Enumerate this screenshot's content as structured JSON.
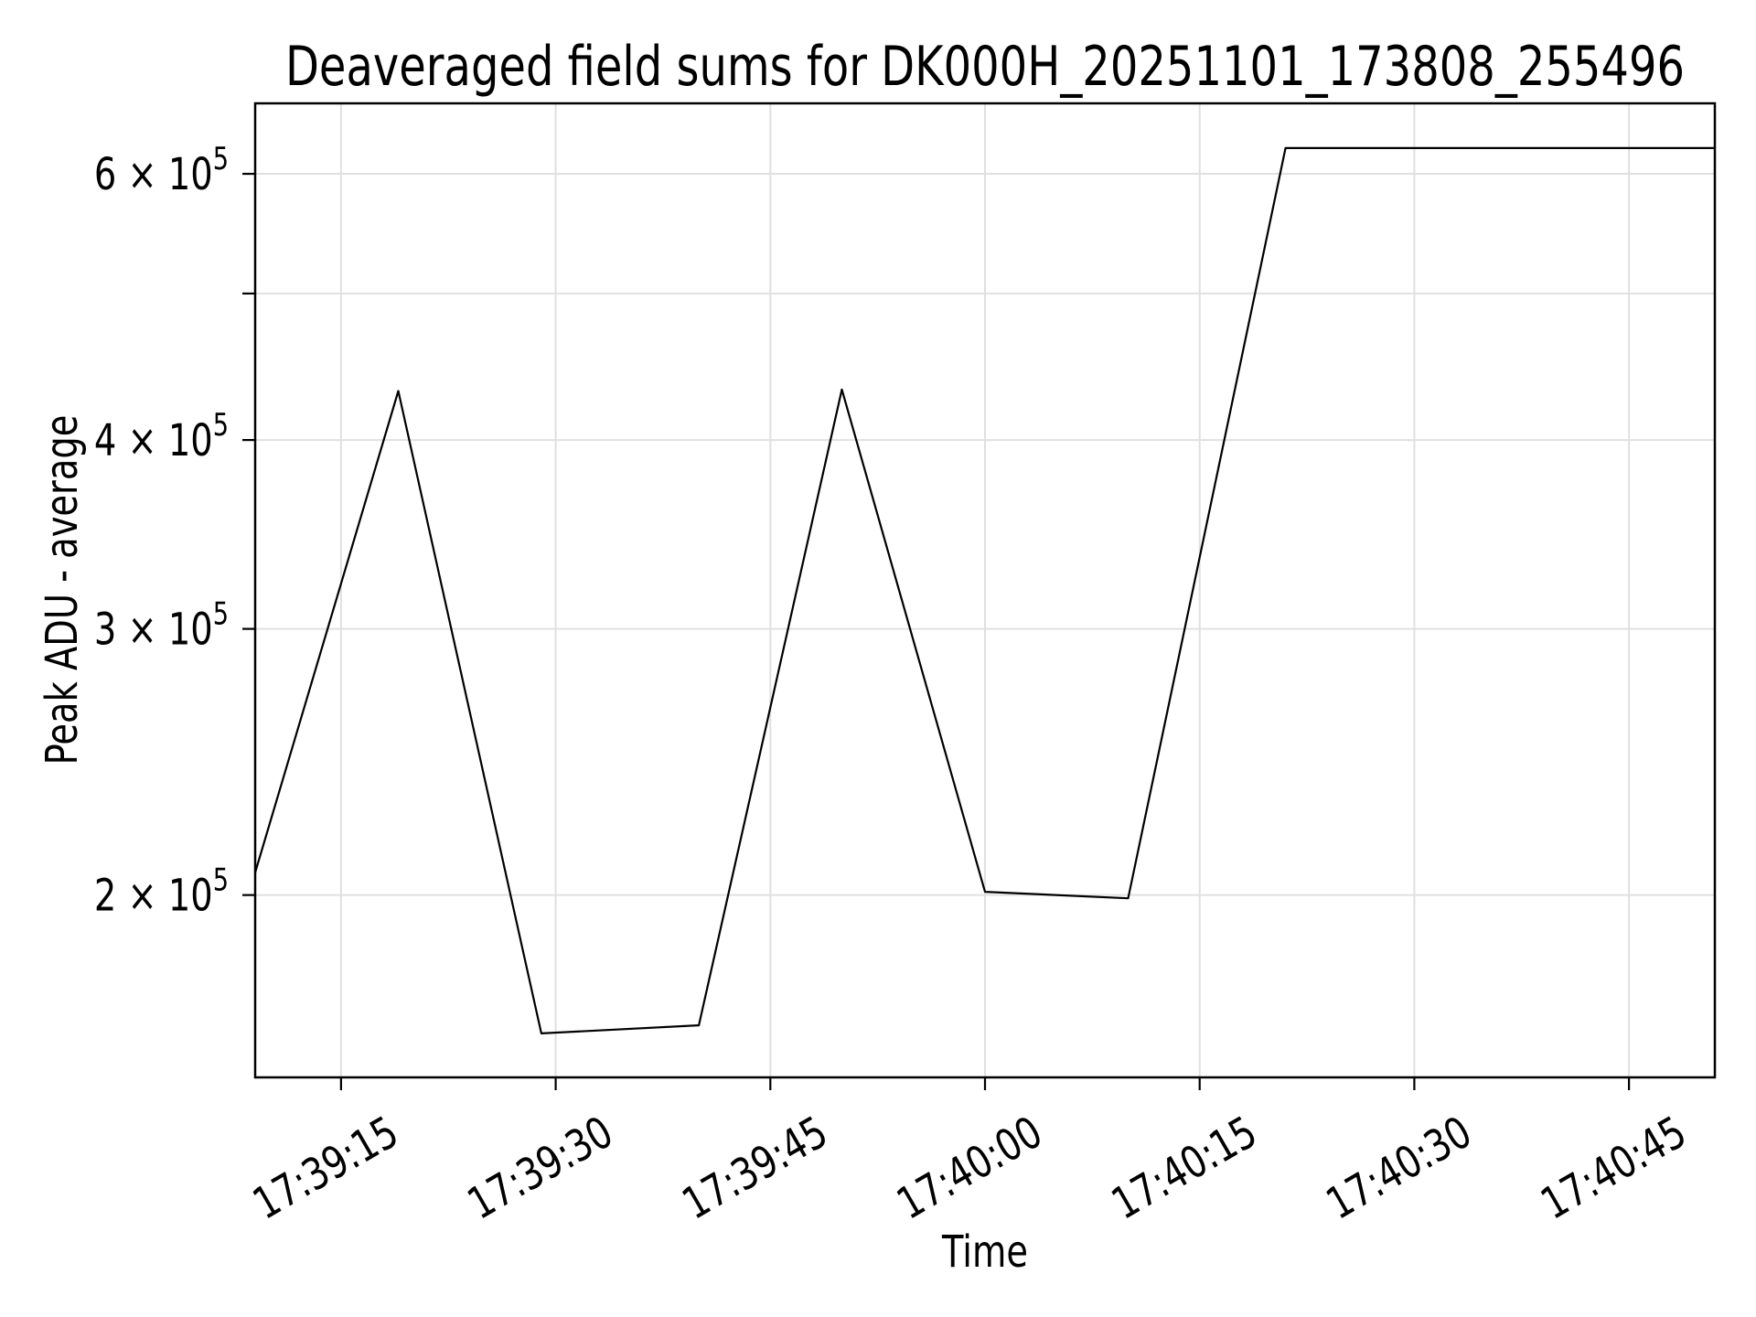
{
  "chart_data": {
    "type": "line",
    "title": "Deaveraged field sums for DK000H_20251101_173808_255496",
    "xlabel": "Time",
    "ylabel": "Peak ADU - average",
    "yscale": "log",
    "grid": true,
    "legend": false,
    "background_color": "#ffffff",
    "line_color": "#000000",
    "grid_color": "#e0e0e0",
    "axis_color": "#000000",
    "x": [
      "17:39:09",
      "17:39:19",
      "17:39:29",
      "17:39:40",
      "17:39:50",
      "17:40:00",
      "17:40:10",
      "17:40:21",
      "17:40:31",
      "17:40:41",
      "17:40:51"
    ],
    "y": [
      207000,
      431000,
      162000,
      164000,
      432000,
      201000,
      199000,
      624000,
      624000,
      624000,
      624000
    ],
    "x_ticks": [
      "17:39:15",
      "17:39:30",
      "17:39:45",
      "17:40:00",
      "17:40:15",
      "17:40:30",
      "17:40:45"
    ],
    "y_ticks": [
      {
        "value": 200000,
        "label_base": "2 × 10",
        "label_exp": "5"
      },
      {
        "value": 300000,
        "label_base": "3 × 10",
        "label_exp": "5"
      },
      {
        "value": 400000,
        "label_base": "4 × 10",
        "label_exp": "5"
      },
      {
        "value": 500000,
        "label_base": "",
        "label_exp": ""
      },
      {
        "value": 600000,
        "label_base": "6 × 10",
        "label_exp": "5"
      }
    ],
    "xlim": [
      "17:39:09",
      "17:40:51"
    ],
    "ylim": [
      151500,
      668000
    ]
  }
}
